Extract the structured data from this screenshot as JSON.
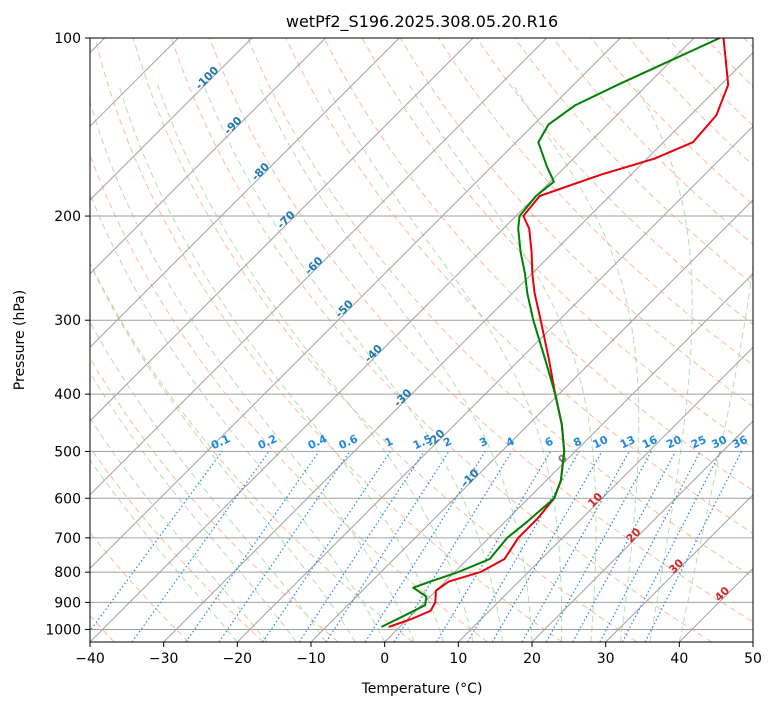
{
  "chart_data": {
    "type": "line",
    "chart_kind": "skew-t log-p diagram",
    "title": "wetPf2_S196.2025.308.05.20.R16",
    "xlabel": "Temperature (°C)",
    "ylabel": "Pressure (hPa)",
    "xlim": [
      -40,
      50
    ],
    "ylim": [
      1050,
      100
    ],
    "y_scale": "log",
    "x_ticks": [
      "−40",
      "−30",
      "−20",
      "−10",
      "0",
      "10",
      "20",
      "30",
      "40",
      "50"
    ],
    "y_ticks": [
      "100",
      "200",
      "300",
      "400",
      "500",
      "600",
      "700",
      "800",
      "900",
      "1000"
    ],
    "grid": true,
    "colors": {
      "temperature": "#e8000b",
      "dewpoint": "#008000",
      "isotherm": "#a0a0a0",
      "isobar": "#a0a0a0",
      "dry_adiabat": "#f4a582",
      "moist_adiabat": "#a6d8a0",
      "mixing_ratio": "#1f88e0",
      "annot_blue": "#1f77b4",
      "annot_red": "#d62728",
      "annot_gray": "#808080"
    },
    "isotherm_labels_upper": [
      "-100",
      "-90",
      "-80",
      "-70",
      "-60",
      "-50",
      "-40",
      "-30",
      "-20",
      "-10"
    ],
    "isotherm_labels_lower": [
      "0",
      "10",
      "20",
      "30",
      "40"
    ],
    "mixing_ratio_labels": [
      "0.1",
      "0.2",
      "0.4",
      "0.6",
      "1",
      "1.5",
      "2",
      "3",
      "4",
      "6",
      "8",
      "10",
      "13",
      "16",
      "20",
      "25",
      "30",
      "36"
    ],
    "series": [
      {
        "name": "temperature",
        "points": [
          {
            "p": 990,
            "t": -1.5
          },
          {
            "p": 960,
            "t": 0.5
          },
          {
            "p": 930,
            "t": 2.0
          },
          {
            "p": 900,
            "t": 1.5
          },
          {
            "p": 860,
            "t": 0.0
          },
          {
            "p": 830,
            "t": 0.5
          },
          {
            "p": 800,
            "t": 3.5
          },
          {
            "p": 760,
            "t": 5.0
          },
          {
            "p": 700,
            "t": 4.0
          },
          {
            "p": 650,
            "t": 4.0
          },
          {
            "p": 600,
            "t": 3.5
          },
          {
            "p": 560,
            "t": 2.0
          },
          {
            "p": 500,
            "t": -1.5
          },
          {
            "p": 450,
            "t": -5.5
          },
          {
            "p": 400,
            "t": -10.5
          },
          {
            "p": 350,
            "t": -16.0
          },
          {
            "p": 300,
            "t": -22.5
          },
          {
            "p": 270,
            "t": -27.0
          },
          {
            "p": 250,
            "t": -30.0
          },
          {
            "p": 230,
            "t": -33.0
          },
          {
            "p": 210,
            "t": -36.5
          },
          {
            "p": 200,
            "t": -39.0
          },
          {
            "p": 185,
            "t": -39.5
          },
          {
            "p": 170,
            "t": -34.0
          },
          {
            "p": 160,
            "t": -29.0
          },
          {
            "p": 150,
            "t": -26.0
          },
          {
            "p": 135,
            "t": -26.5
          },
          {
            "p": 120,
            "t": -29.0
          },
          {
            "p": 100,
            "t": -36.0
          }
        ]
      },
      {
        "name": "dewpoint",
        "points": [
          {
            "p": 990,
            "t": -2.5
          },
          {
            "p": 950,
            "t": -1.0
          },
          {
            "p": 910,
            "t": 0.5
          },
          {
            "p": 880,
            "t": -0.5
          },
          {
            "p": 850,
            "t": -3.5
          },
          {
            "p": 830,
            "t": -2.0
          },
          {
            "p": 800,
            "t": 0.5
          },
          {
            "p": 760,
            "t": 3.0
          },
          {
            "p": 700,
            "t": 2.5
          },
          {
            "p": 660,
            "t": 3.0
          },
          {
            "p": 600,
            "t": 3.5
          },
          {
            "p": 560,
            "t": 2.0
          },
          {
            "p": 500,
            "t": -1.5
          },
          {
            "p": 450,
            "t": -5.5
          },
          {
            "p": 400,
            "t": -10.5
          },
          {
            "p": 350,
            "t": -16.5
          },
          {
            "p": 300,
            "t": -23.5
          },
          {
            "p": 270,
            "t": -28.0
          },
          {
            "p": 250,
            "t": -31.0
          },
          {
            "p": 230,
            "t": -34.5
          },
          {
            "p": 210,
            "t": -38.0
          },
          {
            "p": 200,
            "t": -39.5
          },
          {
            "p": 185,
            "t": -40.0
          },
          {
            "p": 175,
            "t": -39.5
          },
          {
            "p": 165,
            "t": -42.5
          },
          {
            "p": 150,
            "t": -47.0
          },
          {
            "p": 140,
            "t": -48.0
          },
          {
            "p": 130,
            "t": -47.0
          },
          {
            "p": 120,
            "t": -44.0
          },
          {
            "p": 100,
            "t": -36.5
          }
        ]
      }
    ]
  }
}
